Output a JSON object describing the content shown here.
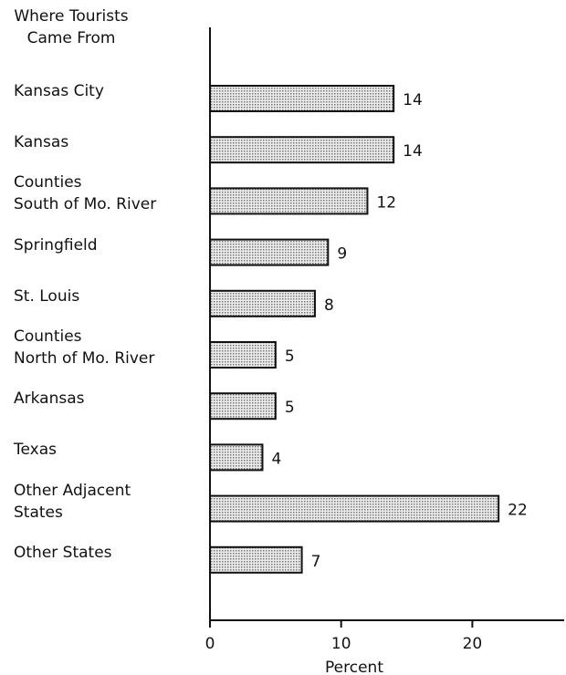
{
  "chart_data": {
    "type": "bar",
    "orientation": "horizontal",
    "title": "Where Tourists\nCame From",
    "categories": [
      "Kansas City",
      "Kansas",
      "Counties\nSouth of Mo. River",
      "Springfield",
      "St. Louis",
      "Counties\nNorth of Mo. River",
      "Arkansas",
      "Texas",
      "Other Adjacent\nStates",
      "Other States"
    ],
    "values": [
      14,
      14,
      12,
      9,
      8,
      5,
      5,
      4,
      22,
      7
    ],
    "color": "#d4d4d4",
    "xlabel": "Percent",
    "xlim": [
      0,
      27
    ],
    "xticks": [
      0,
      10,
      20
    ]
  }
}
